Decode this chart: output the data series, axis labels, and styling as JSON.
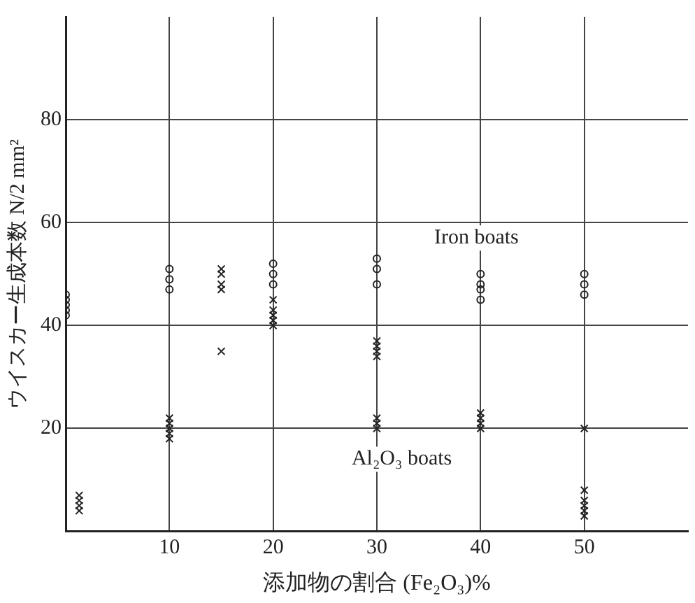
{
  "chart_data": {
    "type": "scatter",
    "xlabel": "添加物の割合 (Fe₂O₃)%",
    "ylabel": "ウイスカー生成本数 N/2 mm²",
    "xlim": [
      0,
      60
    ],
    "xticks": [
      10,
      20,
      30,
      40,
      50
    ],
    "ylim": [
      0,
      100
    ],
    "yticks": [
      20,
      40,
      60,
      80
    ],
    "grid": true,
    "legend": false,
    "series": [
      {
        "name": "Iron boats",
        "color": "#222222",
        "marker": "circle",
        "x": [
          0,
          0,
          0,
          0,
          0,
          10,
          10,
          10,
          20,
          20,
          20,
          30,
          30,
          30,
          40,
          40,
          40,
          40,
          50,
          50,
          50
        ],
        "values": [
          42,
          43,
          44,
          45,
          46,
          47,
          49,
          51,
          48,
          50,
          52,
          48,
          51,
          53,
          45,
          47,
          48,
          50,
          46,
          48,
          50
        ]
      },
      {
        "name": "Al₂O₃ boats",
        "color": "#222222",
        "marker": "cross",
        "x": [
          1.3,
          1.3,
          1.3,
          1.3,
          10,
          10,
          10,
          10,
          10,
          15,
          15,
          15,
          15,
          15,
          20,
          20,
          20,
          20,
          20,
          30,
          30,
          30,
          30,
          30,
          30,
          30,
          40,
          40,
          40,
          40,
          50,
          50,
          50,
          50,
          50,
          50
        ],
        "values": [
          4,
          5,
          6,
          7,
          18,
          19,
          20,
          21,
          22,
          47,
          48,
          50,
          51,
          35,
          40,
          41,
          42,
          43,
          45,
          20,
          21,
          22,
          34,
          35,
          36,
          37,
          20,
          21,
          22,
          23,
          20,
          3,
          4,
          5,
          6,
          8
        ]
      }
    ]
  }
}
